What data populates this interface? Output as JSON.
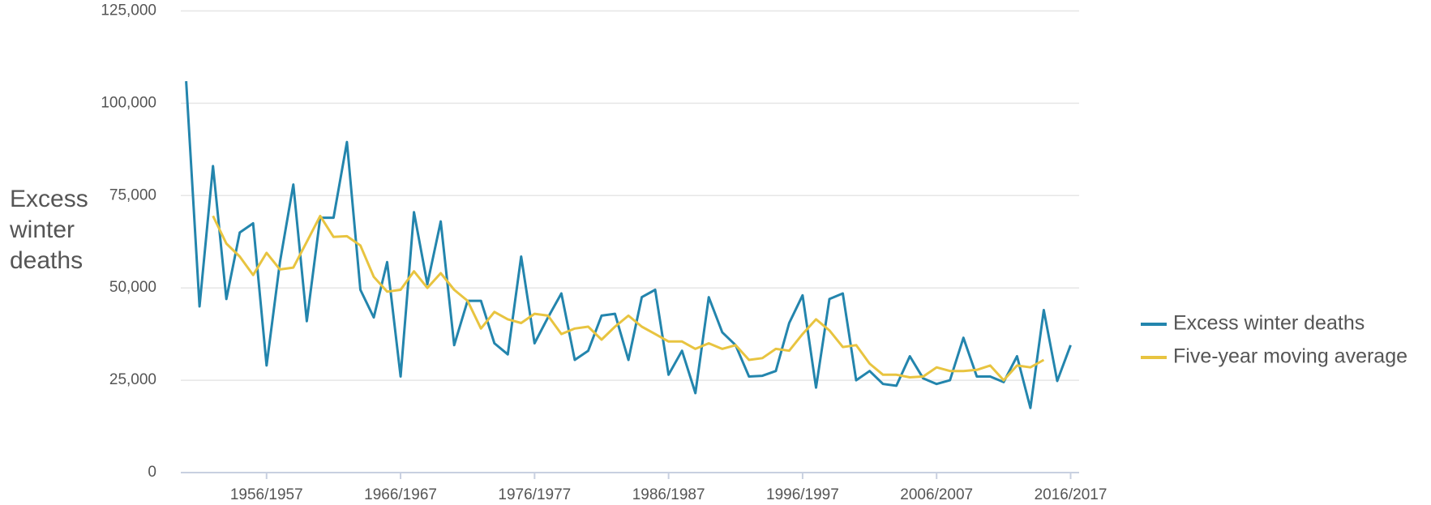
{
  "chart_data": {
    "type": "line",
    "y_label": "Excess winter deaths",
    "categories": [
      null,
      null,
      null,
      null,
      null,
      null,
      "1956/1957",
      null,
      null,
      null,
      null,
      null,
      null,
      null,
      null,
      null,
      "1966/1967",
      null,
      null,
      null,
      null,
      null,
      null,
      null,
      null,
      null,
      "1976/1977",
      null,
      null,
      null,
      null,
      null,
      null,
      null,
      null,
      null,
      "1986/1987",
      null,
      null,
      null,
      null,
      null,
      null,
      null,
      null,
      null,
      "1996/1997",
      null,
      null,
      null,
      null,
      null,
      null,
      null,
      null,
      null,
      "2006/2007",
      null,
      null,
      null,
      null,
      null,
      null,
      null,
      null,
      null,
      "2016/2017"
    ],
    "series": [
      {
        "name": "Excess winter deaths",
        "color": "#2385ad",
        "values": [
          106000,
          45000,
          83000,
          47000,
          65000,
          67500,
          29000,
          57000,
          78000,
          41000,
          69000,
          69000,
          89500,
          49500,
          42000,
          57000,
          26000,
          70500,
          51000,
          68000,
          34500,
          46500,
          46500,
          35000,
          32000,
          58500,
          35000,
          42000,
          48500,
          30500,
          33000,
          42500,
          43000,
          30500,
          47500,
          49500,
          26500,
          33000,
          21500,
          47500,
          38000,
          34500,
          26000,
          26200,
          27500,
          40500,
          48000,
          23000,
          47000,
          48500,
          25000,
          27500,
          24000,
          23500,
          31500,
          25500,
          24000,
          25000,
          36500,
          26000,
          26000,
          24500,
          31500,
          17500,
          44000,
          24800,
          34500
        ]
      },
      {
        "name": "Five-year moving average",
        "color": "#e8c440",
        "values": [
          null,
          null,
          69500,
          62000,
          58500,
          53500,
          59500,
          55000,
          55500,
          62500,
          69500,
          63800,
          64000,
          61500,
          53000,
          49000,
          49500,
          54500,
          50000,
          54000,
          49500,
          46500,
          39000,
          43500,
          41500,
          40500,
          43000,
          42500,
          37500,
          39000,
          39500,
          36000,
          39500,
          42500,
          39500,
          37500,
          35500,
          35500,
          33500,
          35000,
          33500,
          34500,
          30500,
          31000,
          33500,
          33000,
          37500,
          41500,
          38500,
          34000,
          34500,
          29500,
          26500,
          26500,
          25800,
          26000,
          28500,
          27500,
          27500,
          27800,
          29000,
          25000,
          29000,
          28500,
          30500,
          null,
          null
        ]
      }
    ],
    "ylim": [
      0,
      125000
    ],
    "yticks": [
      0,
      {
        "value": 25000,
        "label": "25,000"
      },
      {
        "value": 50000,
        "label": "50,000"
      },
      {
        "value": 75000,
        "label": "75,000"
      },
      {
        "value": 100000,
        "label": "100,000"
      },
      {
        "value": 125000,
        "label": "125,000"
      }
    ],
    "grid": true,
    "legend": "right"
  }
}
